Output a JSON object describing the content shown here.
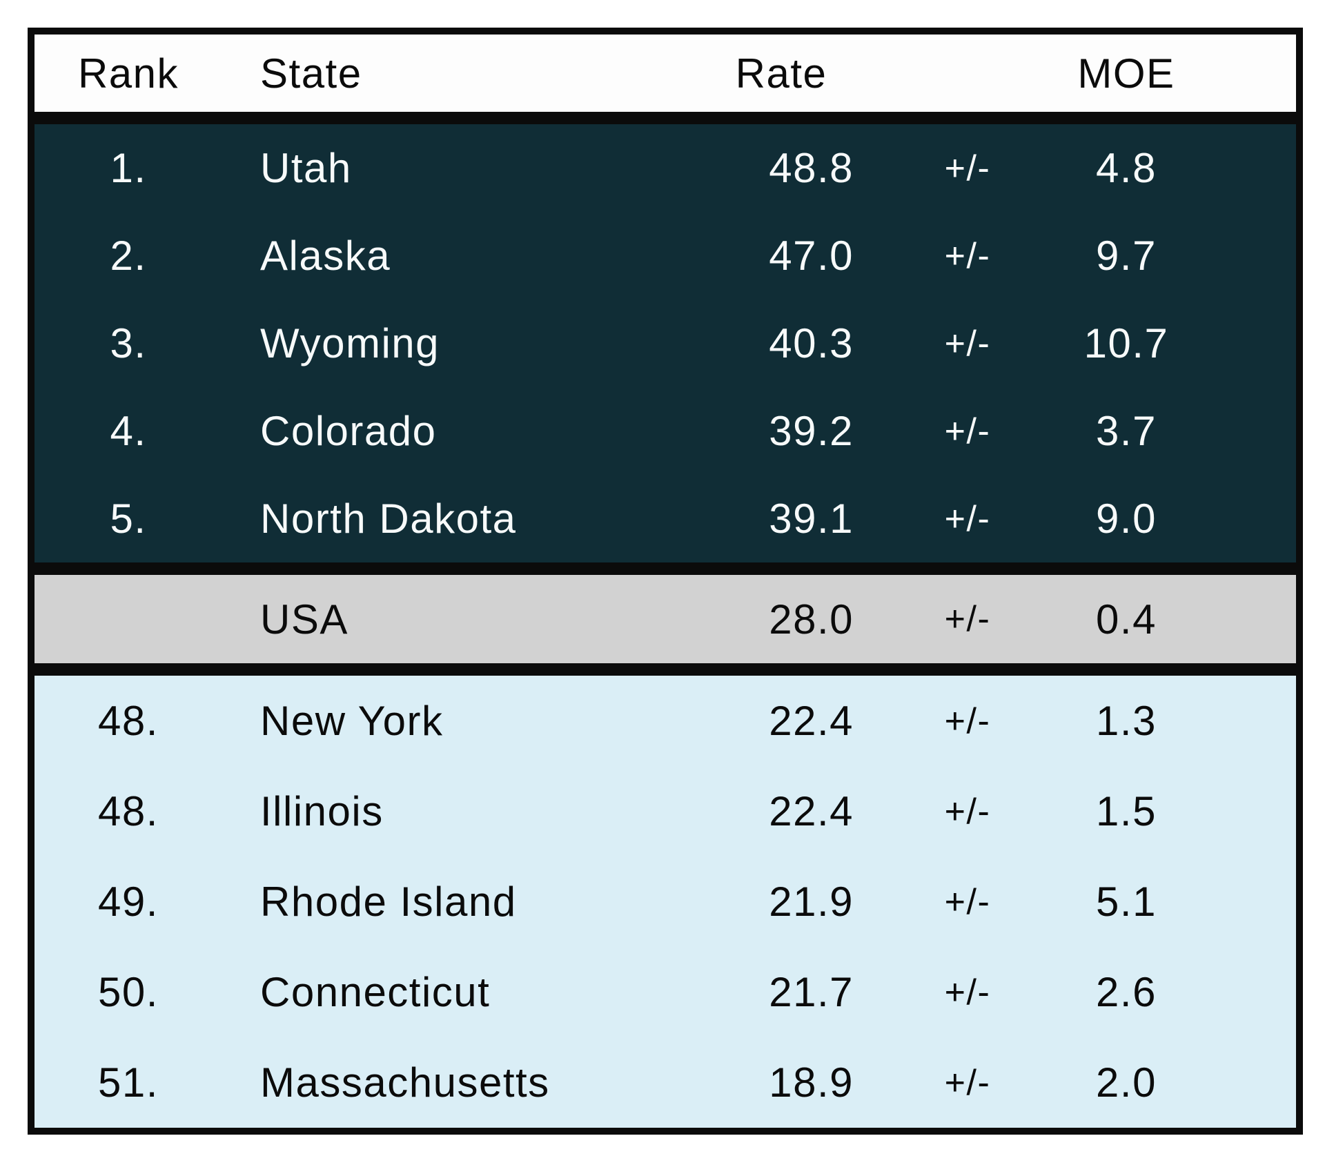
{
  "table": {
    "columns": {
      "rank": "Rank",
      "state": "State",
      "rate": "Rate",
      "moe": "MOE"
    },
    "plus_minus": "+/-",
    "top_section": {
      "rows": [
        {
          "rank": "1.",
          "state": "Utah",
          "rate": "48.8",
          "moe": "4.8"
        },
        {
          "rank": "2.",
          "state": "Alaska",
          "rate": "47.0",
          "moe": "9.7"
        },
        {
          "rank": "3.",
          "state": "Wyoming",
          "rate": "40.3",
          "moe": "10.7"
        },
        {
          "rank": "4.",
          "state": "Colorado",
          "rate": "39.2",
          "moe": "3.7"
        },
        {
          "rank": "5.",
          "state": "North Dakota",
          "rate": "39.1",
          "moe": "9.0"
        }
      ]
    },
    "usa_row": {
      "rank": "",
      "state": "USA",
      "rate": "28.0",
      "moe": "0.4"
    },
    "bottom_section": {
      "rows": [
        {
          "rank": "48.",
          "state": "New York",
          "rate": "22.4",
          "moe": "1.3"
        },
        {
          "rank": "48.",
          "state": "Illinois",
          "rate": "22.4",
          "moe": "1.5"
        },
        {
          "rank": "49.",
          "state": "Rhode Island",
          "rate": "21.9",
          "moe": "5.1"
        },
        {
          "rank": "50.",
          "state": "Connecticut",
          "rate": "21.7",
          "moe": "2.6"
        },
        {
          "rank": "51.",
          "state": "Massachusetts",
          "rate": "18.9",
          "moe": "2.0"
        }
      ]
    }
  },
  "colors": {
    "top_section_bg": "#102d36",
    "top_section_text": "#f7fafa",
    "usa_row_bg": "#d2d2d2",
    "bottom_section_bg": "#daeef6",
    "border": "#0b0b0b",
    "header_bg": "#fdfdfd",
    "text_dark": "#0b0b0b"
  },
  "chart_data": {
    "type": "table",
    "title": "",
    "columns": [
      "Rank",
      "State",
      "Rate",
      "MOE"
    ],
    "rows": [
      [
        "1.",
        "Utah",
        48.8,
        4.8
      ],
      [
        "2.",
        "Alaska",
        47.0,
        9.7
      ],
      [
        "3.",
        "Wyoming",
        40.3,
        10.7
      ],
      [
        "4.",
        "Colorado",
        39.2,
        3.7
      ],
      [
        "5.",
        "North Dakota",
        39.1,
        9.0
      ],
      [
        "",
        "USA",
        28.0,
        0.4
      ],
      [
        "48.",
        "New York",
        22.4,
        1.3
      ],
      [
        "48.",
        "Illinois",
        22.4,
        1.5
      ],
      [
        "49.",
        "Rhode Island",
        21.9,
        5.1
      ],
      [
        "50.",
        "Connecticut",
        21.7,
        2.6
      ],
      [
        "51.",
        "Massachusetts",
        18.9,
        2.0
      ]
    ],
    "layout_hints": {
      "moe_notation": "+/-",
      "group_top5_bg": "dark teal, white text",
      "group_usa_bg": "gray benchmark row, no rank",
      "group_bottom_bg": "light blue, ranks 48-51",
      "grid": "thick black outer border and section dividers"
    }
  }
}
